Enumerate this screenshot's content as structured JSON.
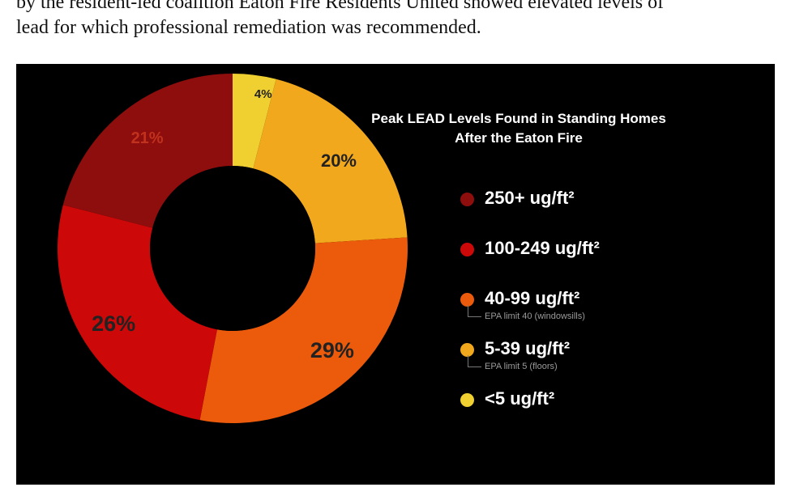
{
  "article": {
    "line1": "by the resident-led coalition Eaton Fire Residents United showed elevated levels of",
    "line2": "lead for which professional remediation was recommended."
  },
  "chart_data": {
    "type": "pie",
    "title_lines": [
      "Peak LEAD Levels Found in Standing Homes",
      "After the Eaton Fire"
    ],
    "slices": [
      {
        "label": "<5 ug/ft²",
        "value": 4,
        "display": "4%",
        "color": "#f0d030",
        "note": ""
      },
      {
        "label": "5-39 ug/ft²",
        "value": 20,
        "display": "20%",
        "color": "#f2a81c",
        "note": "EPA limit 5 (floors)"
      },
      {
        "label": "40-99 ug/ft²",
        "value": 29,
        "display": "29%",
        "color": "#ec5a0b",
        "note": "EPA limit 40 (windowsills)"
      },
      {
        "label": "100-249 ug/ft²",
        "value": 26,
        "display": "26%",
        "color": "#cc0808",
        "note": ""
      },
      {
        "label": "250+ ug/ft²",
        "value": 21,
        "display": "21%",
        "color": "#8e0d0d",
        "note": ""
      }
    ],
    "slice_label_colors": [
      "#222222",
      "#222222",
      "#222222",
      "#222222",
      "#c0321e"
    ],
    "legend_order": [
      "250+ ug/ft²",
      "100-249 ug/ft²",
      "40-99 ug/ft²",
      "5-39 ug/ft²",
      "<5 ug/ft²"
    ],
    "legend_placement": "right",
    "donut": true
  }
}
